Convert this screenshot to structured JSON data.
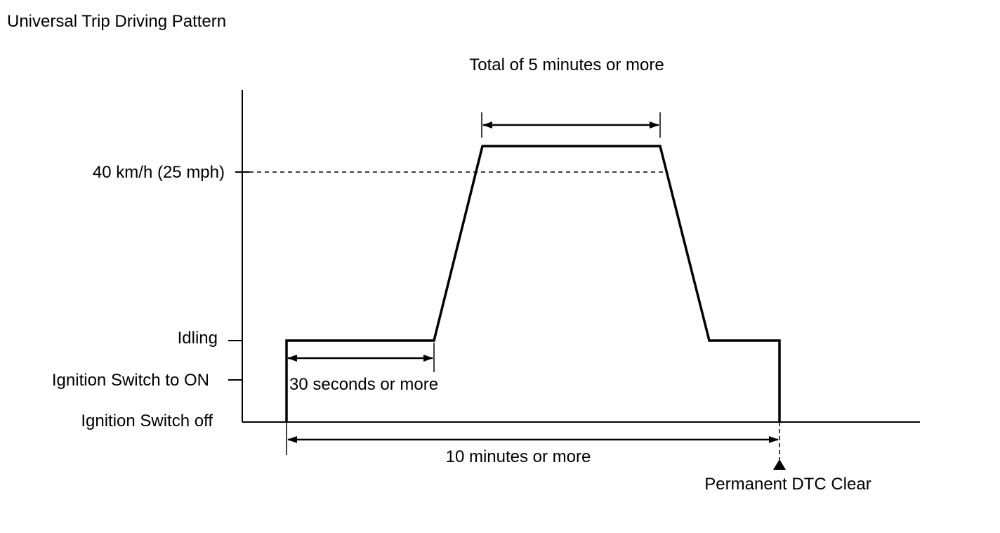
{
  "title": "Universal Trip Driving Pattern",
  "levels": {
    "speed": "40 km/h (25 mph)",
    "idling": "Idling",
    "ignition_on": "Ignition Switch to ON",
    "ignition_off": "Ignition Switch off"
  },
  "annotations": {
    "total_time": "Total of 5 minutes or more",
    "idle_time": "30 seconds or more",
    "overall_time": "10 minutes or more",
    "clear_event": "Permanent DTC Clear"
  }
}
